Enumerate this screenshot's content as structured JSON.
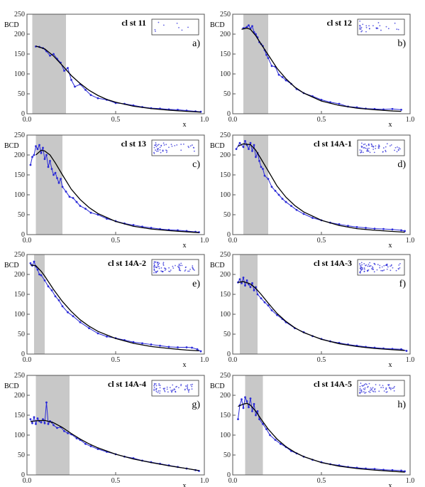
{
  "figure": {
    "colors": {
      "data": "#2a2ad8",
      "fit": "#000000",
      "shade": "#c8c8c8",
      "frame": "#555555"
    },
    "icons": [
      "cluster-thumbnail-icon"
    ]
  },
  "chart_data": [
    {
      "type": "line",
      "title": "cl st 11",
      "panel_label": "a)",
      "ylabel": "BCD",
      "xlabel": "x",
      "xlim": [
        0,
        1
      ],
      "ylim": [
        0,
        250
      ],
      "xticks": [
        "0.0",
        "0.5",
        "1.0"
      ],
      "yticks": [
        "0",
        "50",
        "100",
        "150",
        "200",
        "250"
      ],
      "shaded_x": [
        0.03,
        0.22
      ],
      "fit": {
        "x": [
          0.05,
          0.1,
          0.15,
          0.2,
          0.25,
          0.3,
          0.35,
          0.4,
          0.45,
          0.5,
          0.6,
          0.7,
          0.8,
          0.9,
          0.98
        ],
        "y": [
          170,
          163,
          145,
          121,
          96,
          76,
          59,
          46,
          36,
          29,
          19,
          13,
          9,
          6,
          4
        ]
      },
      "series": {
        "x": [
          0.05,
          0.07,
          0.09,
          0.11,
          0.13,
          0.15,
          0.17,
          0.19,
          0.21,
          0.23,
          0.25,
          0.27,
          0.3,
          0.33,
          0.36,
          0.4,
          0.45,
          0.5,
          0.55,
          0.6,
          0.65,
          0.7,
          0.75,
          0.8,
          0.85,
          0.9,
          0.95,
          0.98
        ],
        "y": [
          169,
          168,
          165,
          157,
          146,
          150,
          138,
          128,
          108,
          115,
          85,
          68,
          74,
          60,
          47,
          39,
          35,
          27,
          25,
          21,
          17,
          14,
          13,
          11,
          10,
          8,
          6,
          5
        ]
      }
    },
    {
      "type": "line",
      "title": "cl st 12",
      "panel_label": "b)",
      "ylabel": "BCD",
      "xlabel": "x",
      "xlim": [
        0,
        1
      ],
      "ylim": [
        0,
        250
      ],
      "xticks": [
        "0.0",
        "0.5",
        "1.0"
      ],
      "yticks": [
        "0",
        "50",
        "100",
        "150",
        "200",
        "250"
      ],
      "shaded_x": [
        0.06,
        0.2
      ],
      "fit": {
        "x": [
          0.05,
          0.08,
          0.1,
          0.13,
          0.16,
          0.2,
          0.25,
          0.3,
          0.35,
          0.4,
          0.5,
          0.6,
          0.7,
          0.8,
          0.9,
          0.95
        ],
        "y": [
          212,
          215,
          212,
          196,
          175,
          148,
          114,
          88,
          67,
          52,
          32,
          21,
          14,
          10,
          7,
          6
        ]
      },
      "series": {
        "x": [
          0.06,
          0.08,
          0.09,
          0.1,
          0.11,
          0.12,
          0.13,
          0.14,
          0.15,
          0.16,
          0.17,
          0.18,
          0.19,
          0.2,
          0.22,
          0.24,
          0.26,
          0.28,
          0.3,
          0.33,
          0.36,
          0.4,
          0.45,
          0.5,
          0.55,
          0.6,
          0.65,
          0.7,
          0.75,
          0.8,
          0.85,
          0.9,
          0.95
        ],
        "y": [
          215,
          218,
          222,
          214,
          220,
          205,
          200,
          192,
          180,
          175,
          170,
          160,
          148,
          140,
          120,
          118,
          98,
          92,
          84,
          75,
          62,
          52,
          44,
          35,
          29,
          25,
          18,
          16,
          13,
          12,
          11,
          12,
          10
        ]
      }
    },
    {
      "type": "line",
      "title": "cl st 13",
      "panel_label": "c)",
      "ylabel": "BCD",
      "xlabel": "x",
      "xlim": [
        0,
        1
      ],
      "ylim": [
        0,
        250
      ],
      "xticks": [
        "0.0",
        "0.5",
        "1.0"
      ],
      "yticks": [
        "0",
        "50",
        "100",
        "150",
        "200",
        "250"
      ],
      "shaded_x": [
        0.05,
        0.2
      ],
      "fit": {
        "x": [
          0.05,
          0.08,
          0.1,
          0.13,
          0.16,
          0.2,
          0.25,
          0.3,
          0.35,
          0.4,
          0.5,
          0.6,
          0.7,
          0.8,
          0.9,
          0.97
        ],
        "y": [
          200,
          212,
          210,
          200,
          180,
          150,
          114,
          88,
          68,
          53,
          33,
          21,
          14,
          10,
          7,
          5
        ]
      },
      "series": {
        "x": [
          0.02,
          0.03,
          0.04,
          0.05,
          0.06,
          0.07,
          0.08,
          0.09,
          0.1,
          0.11,
          0.12,
          0.13,
          0.14,
          0.15,
          0.16,
          0.17,
          0.18,
          0.19,
          0.2,
          0.22,
          0.24,
          0.26,
          0.28,
          0.3,
          0.33,
          0.36,
          0.4,
          0.45,
          0.5,
          0.55,
          0.6,
          0.65,
          0.7,
          0.75,
          0.8,
          0.85,
          0.9,
          0.95,
          0.97
        ],
        "y": [
          175,
          195,
          200,
          222,
          215,
          225,
          205,
          218,
          190,
          200,
          170,
          185,
          165,
          150,
          155,
          142,
          130,
          140,
          120,
          108,
          95,
          92,
          82,
          72,
          65,
          55,
          50,
          40,
          34,
          28,
          24,
          20,
          17,
          14,
          12,
          11,
          9,
          7,
          6
        ]
      }
    },
    {
      "type": "line",
      "title": "cl st 14A-1",
      "panel_label": "d)",
      "ylabel": "BCD",
      "xlabel": "x",
      "xlim": [
        0,
        1
      ],
      "ylim": [
        0,
        250
      ],
      "xticks": [
        "0.0",
        "0.5",
        "1.0"
      ],
      "yticks": [
        "0",
        "50",
        "100",
        "150",
        "200",
        "250"
      ],
      "shaded_x": [
        0.06,
        0.2
      ],
      "fit": {
        "x": [
          0.03,
          0.06,
          0.1,
          0.13,
          0.16,
          0.2,
          0.25,
          0.3,
          0.35,
          0.4,
          0.5,
          0.6,
          0.7,
          0.8,
          0.9,
          0.97
        ],
        "y": [
          222,
          228,
          226,
          212,
          190,
          160,
          122,
          94,
          73,
          57,
          36,
          23,
          15,
          11,
          8,
          6
        ]
      },
      "series": {
        "x": [
          0.02,
          0.04,
          0.06,
          0.07,
          0.08,
          0.09,
          0.1,
          0.11,
          0.12,
          0.13,
          0.14,
          0.15,
          0.16,
          0.17,
          0.18,
          0.2,
          0.22,
          0.24,
          0.26,
          0.28,
          0.3,
          0.33,
          0.36,
          0.4,
          0.45,
          0.5,
          0.55,
          0.6,
          0.65,
          0.7,
          0.75,
          0.8,
          0.85,
          0.9,
          0.95,
          0.97
        ],
        "y": [
          215,
          230,
          220,
          235,
          225,
          215,
          230,
          210,
          225,
          195,
          205,
          185,
          170,
          165,
          148,
          140,
          120,
          110,
          100,
          90,
          82,
          72,
          62,
          52,
          42,
          36,
          30,
          26,
          22,
          19,
          17,
          15,
          14,
          13,
          11,
          9
        ]
      }
    },
    {
      "type": "line",
      "title": "cl st 14A-2",
      "panel_label": "e)",
      "ylabel": "BCD",
      "xlabel": "x",
      "xlim": [
        0,
        1
      ],
      "ylim": [
        0,
        250
      ],
      "xticks": [
        "0.0",
        "0.5",
        "1.0"
      ],
      "yticks": [
        "0",
        "50",
        "100",
        "150",
        "200",
        "250"
      ],
      "shaded_x": [
        0.04,
        0.1
      ],
      "fit": {
        "x": [
          0.02,
          0.05,
          0.08,
          0.1,
          0.15,
          0.2,
          0.25,
          0.3,
          0.35,
          0.4,
          0.5,
          0.6,
          0.7,
          0.8,
          0.9,
          0.97
        ],
        "y": [
          224,
          222,
          208,
          196,
          162,
          132,
          107,
          86,
          70,
          57,
          39,
          27,
          19,
          14,
          10,
          8
        ]
      },
      "series": {
        "x": [
          0.02,
          0.03,
          0.04,
          0.05,
          0.06,
          0.07,
          0.08,
          0.1,
          0.12,
          0.14,
          0.16,
          0.18,
          0.2,
          0.23,
          0.26,
          0.3,
          0.35,
          0.4,
          0.45,
          0.5,
          0.55,
          0.6,
          0.65,
          0.7,
          0.75,
          0.8,
          0.85,
          0.9,
          0.93,
          0.96,
          0.98
        ],
        "y": [
          228,
          222,
          232,
          220,
          212,
          200,
          198,
          185,
          170,
          160,
          145,
          135,
          120,
          105,
          95,
          80,
          65,
          52,
          44,
          40,
          35,
          30,
          27,
          24,
          21,
          18,
          17,
          17,
          16,
          12,
          7
        ]
      }
    },
    {
      "type": "line",
      "title": "cl st 14A-3",
      "panel_label": "f)",
      "ylabel": "BCD",
      "xlabel": "x",
      "xlim": [
        0,
        1
      ],
      "ylim": [
        0,
        250
      ],
      "xticks": [
        "0.0",
        "0.5",
        "1.0"
      ],
      "yticks": [
        "0",
        "50",
        "100",
        "150",
        "200",
        "250"
      ],
      "shaded_x": [
        0.04,
        0.14
      ],
      "fit": {
        "x": [
          0.03,
          0.06,
          0.1,
          0.13,
          0.16,
          0.2,
          0.25,
          0.3,
          0.35,
          0.4,
          0.5,
          0.6,
          0.7,
          0.8,
          0.9,
          0.97
        ],
        "y": [
          180,
          182,
          176,
          165,
          150,
          128,
          102,
          82,
          66,
          54,
          37,
          26,
          19,
          14,
          11,
          9
        ]
      },
      "series": {
        "x": [
          0.03,
          0.04,
          0.05,
          0.06,
          0.07,
          0.08,
          0.09,
          0.1,
          0.11,
          0.12,
          0.13,
          0.14,
          0.16,
          0.18,
          0.2,
          0.22,
          0.25,
          0.28,
          0.3,
          0.35,
          0.4,
          0.45,
          0.5,
          0.55,
          0.6,
          0.65,
          0.7,
          0.75,
          0.8,
          0.85,
          0.9,
          0.95,
          0.98
        ],
        "y": [
          180,
          188,
          178,
          192,
          172,
          185,
          175,
          168,
          178,
          160,
          168,
          150,
          140,
          130,
          122,
          110,
          98,
          88,
          80,
          65,
          55,
          45,
          38,
          32,
          28,
          24,
          21,
          18,
          16,
          14,
          13,
          12,
          8
        ]
      }
    },
    {
      "type": "line",
      "title": "cl st 14A-4",
      "panel_label": "g)",
      "ylabel": "BCD",
      "xlabel": "x",
      "xlim": [
        0,
        1
      ],
      "ylim": [
        0,
        250
      ],
      "xticks": [
        "0.0",
        "0.5",
        "1.0"
      ],
      "yticks": [
        "0",
        "50",
        "100",
        "150",
        "200",
        "250"
      ],
      "shaded_x": [
        0.05,
        0.24
      ],
      "fit": {
        "x": [
          0.02,
          0.05,
          0.1,
          0.15,
          0.2,
          0.25,
          0.3,
          0.35,
          0.4,
          0.5,
          0.6,
          0.7,
          0.8,
          0.9,
          0.97
        ],
        "y": [
          134,
          136,
          137,
          131,
          119,
          104,
          90,
          78,
          68,
          52,
          40,
          31,
          23,
          16,
          11
        ]
      },
      "series": {
        "x": [
          0.02,
          0.03,
          0.04,
          0.05,
          0.06,
          0.07,
          0.08,
          0.09,
          0.1,
          0.11,
          0.12,
          0.13,
          0.14,
          0.15,
          0.17,
          0.19,
          0.21,
          0.23,
          0.25,
          0.28,
          0.3,
          0.33,
          0.36,
          0.4,
          0.45,
          0.5,
          0.55,
          0.6,
          0.65,
          0.7,
          0.75,
          0.8,
          0.85,
          0.9,
          0.95,
          0.97
        ],
        "y": [
          140,
          130,
          145,
          128,
          142,
          135,
          132,
          140,
          130,
          182,
          128,
          135,
          132,
          125,
          118,
          120,
          110,
          105,
          102,
          92,
          88,
          78,
          72,
          65,
          58,
          52,
          46,
          42,
          36,
          32,
          28,
          24,
          20,
          16,
          12,
          10
        ]
      }
    },
    {
      "type": "line",
      "title": "cl st 14A-5",
      "panel_label": "h)",
      "ylabel": "BCD",
      "xlabel": "x",
      "xlim": [
        0,
        1
      ],
      "ylim": [
        0,
        250
      ],
      "xticks": [
        "0.0",
        "0.5",
        "1.0"
      ],
      "yticks": [
        "0",
        "50",
        "100",
        "150",
        "200",
        "250"
      ],
      "shaded_x": [
        0.07,
        0.17
      ],
      "fit": {
        "x": [
          0.03,
          0.06,
          0.08,
          0.1,
          0.13,
          0.16,
          0.2,
          0.25,
          0.3,
          0.35,
          0.4,
          0.5,
          0.6,
          0.7,
          0.8,
          0.9,
          0.97
        ],
        "y": [
          172,
          178,
          180,
          175,
          160,
          140,
          115,
          90,
          71,
          57,
          46,
          31,
          22,
          16,
          12,
          9,
          7
        ]
      },
      "series": {
        "x": [
          0.03,
          0.04,
          0.05,
          0.06,
          0.07,
          0.08,
          0.09,
          0.1,
          0.11,
          0.12,
          0.13,
          0.14,
          0.15,
          0.17,
          0.19,
          0.21,
          0.24,
          0.27,
          0.3,
          0.33,
          0.36,
          0.4,
          0.45,
          0.5,
          0.55,
          0.6,
          0.65,
          0.7,
          0.75,
          0.8,
          0.85,
          0.9,
          0.95,
          0.97
        ],
        "y": [
          140,
          175,
          190,
          168,
          195,
          185,
          170,
          192,
          160,
          178,
          150,
          160,
          140,
          128,
          115,
          100,
          88,
          78,
          70,
          60,
          54,
          46,
          38,
          32,
          27,
          24,
          20,
          18,
          16,
          15,
          13,
          12,
          11,
          9
        ]
      }
    }
  ]
}
